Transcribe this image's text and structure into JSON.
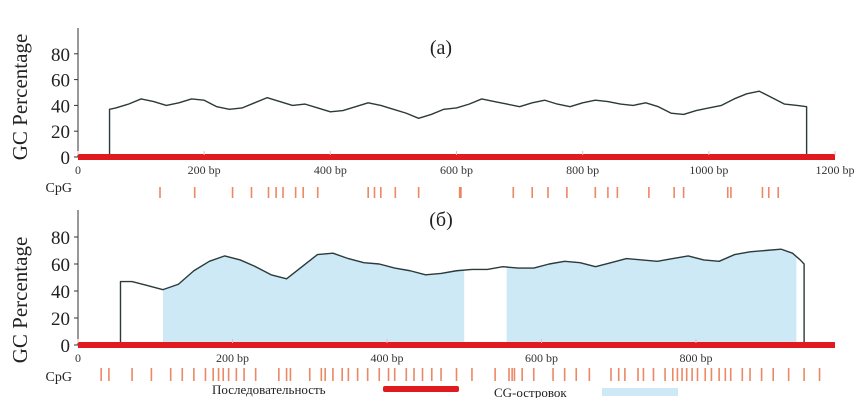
{
  "chart_data": [
    {
      "type": "line",
      "panel_label": "(a)",
      "ylabel": "GC Percentage",
      "ylim": [
        0,
        100
      ],
      "yticks": [
        0,
        20,
        40,
        60,
        80
      ],
      "xlim": [
        0,
        1200
      ],
      "xticks": [
        0,
        200,
        400,
        600,
        800,
        1000,
        1200
      ],
      "xtick_labels": [
        "0",
        "200 bp",
        "400 bp",
        "600 bp",
        "800 bp",
        "1000 bp",
        "1200 bp"
      ],
      "sequence_range": [
        0,
        1200
      ],
      "series": [
        {
          "x": [
            50,
            60,
            80,
            100,
            120,
            140,
            160,
            180,
            200,
            220,
            240,
            260,
            280,
            300,
            320,
            340,
            360,
            380,
            400,
            420,
            440,
            460,
            480,
            500,
            520,
            540,
            560,
            580,
            600,
            620,
            640,
            660,
            680,
            700,
            720,
            740,
            760,
            780,
            800,
            820,
            840,
            860,
            880,
            900,
            920,
            940,
            960,
            980,
            1000,
            1020,
            1040,
            1060,
            1080,
            1100,
            1120,
            1140,
            1155
          ],
          "y": [
            37,
            38,
            41,
            45,
            43,
            40,
            42,
            45,
            44,
            39,
            37,
            38,
            42,
            46,
            43,
            40,
            41,
            38,
            35,
            36,
            39,
            42,
            40,
            37,
            34,
            30,
            33,
            37,
            38,
            41,
            45,
            43,
            41,
            39,
            42,
            44,
            41,
            39,
            42,
            44,
            43,
            41,
            40,
            42,
            39,
            34,
            33,
            36,
            38,
            40,
            45,
            49,
            51,
            46,
            41,
            40,
            39
          ]
        }
      ],
      "islands": [],
      "cpg_label": "CpG",
      "cpg_positions": [
        130,
        185,
        245,
        275,
        302,
        314,
        325,
        345,
        357,
        380,
        460,
        470,
        480,
        503,
        540,
        605,
        607,
        690,
        720,
        745,
        775,
        820,
        840,
        855,
        905,
        945,
        960,
        1030,
        1035,
        1085,
        1095,
        1110
      ]
    },
    {
      "type": "area",
      "panel_label": "(б)",
      "ylabel": "GC Percentage",
      "ylim": [
        0,
        100
      ],
      "yticks": [
        0,
        20,
        40,
        60,
        80
      ],
      "xlim": [
        0,
        980
      ],
      "xticks": [
        0,
        200,
        400,
        600,
        800
      ],
      "xtick_labels": [
        "0",
        "200 bp",
        "400 bp",
        "600 bp",
        "800 bp"
      ],
      "sequence_range": [
        0,
        980
      ],
      "series": [
        {
          "x": [
            55,
            70,
            90,
            110,
            130,
            150,
            170,
            190,
            210,
            230,
            250,
            270,
            290,
            310,
            330,
            350,
            370,
            390,
            410,
            430,
            450,
            470,
            490,
            510,
            530,
            550,
            570,
            590,
            610,
            630,
            650,
            670,
            690,
            710,
            730,
            750,
            770,
            790,
            810,
            830,
            850,
            870,
            890,
            910,
            925,
            935,
            940
          ],
          "y": [
            47,
            47,
            44,
            41,
            45,
            55,
            62,
            66,
            63,
            58,
            52,
            49,
            58,
            67,
            68,
            64,
            61,
            60,
            57,
            55,
            52,
            53,
            55,
            56,
            56,
            58,
            57,
            57,
            60,
            62,
            61,
            58,
            61,
            64,
            63,
            62,
            64,
            66,
            63,
            62,
            67,
            69,
            70,
            71,
            68,
            63,
            60
          ]
        }
      ],
      "islands": [
        [
          110,
          500
        ],
        [
          555,
          930
        ]
      ],
      "cpg_label": "CpG",
      "cpg_positions": [
        30,
        40,
        70,
        95,
        120,
        135,
        150,
        165,
        175,
        182,
        188,
        195,
        205,
        215,
        230,
        260,
        270,
        275,
        300,
        315,
        320,
        330,
        342,
        350,
        362,
        375,
        390,
        402,
        410,
        425,
        435,
        446,
        458,
        470,
        490,
        510,
        540,
        558,
        562,
        565,
        575,
        590,
        615,
        630,
        645,
        662,
        690,
        700,
        708,
        725,
        732,
        745,
        760,
        770,
        776,
        782,
        788,
        795,
        802,
        812,
        820,
        830,
        838,
        845,
        860,
        870,
        885,
        900,
        920,
        940,
        960
      ]
    }
  ],
  "legend": {
    "sequence_label": "Последовательность",
    "island_label": "CG-островок"
  },
  "colors": {
    "sequence_bar": "#e01a1f",
    "line": "#2b3a3a",
    "island_fill": "#cde9f6",
    "cpg_mark": "#e8734a",
    "axis": "#333333"
  }
}
